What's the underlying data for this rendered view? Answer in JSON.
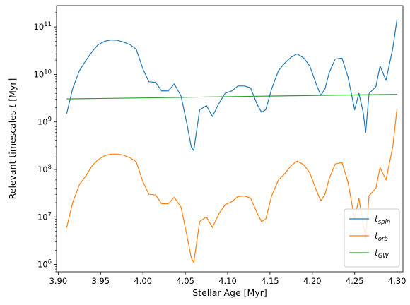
{
  "chart_data": {
    "type": "line",
    "xlabel": "Stellar Age [Myr]",
    "ylabel": "Relevant timescales t [Myr]",
    "ylabel_parts": {
      "text": "Relevant timescales ",
      "italic": "t",
      "unit": " [Myr]"
    },
    "xlim": [
      3.898,
      4.307
    ],
    "ylim": [
      700000,
      280000000000.0
    ],
    "yscale": "log",
    "grid": false,
    "legend_position": "bottom-right",
    "x_ticks": [
      {
        "value": 3.9,
        "label": "3.90"
      },
      {
        "value": 3.95,
        "label": "3.95"
      },
      {
        "value": 4.0,
        "label": "4.00"
      },
      {
        "value": 4.05,
        "label": "4.05"
      },
      {
        "value": 4.1,
        "label": "4.10"
      },
      {
        "value": 4.15,
        "label": "4.15"
      },
      {
        "value": 4.2,
        "label": "4.20"
      },
      {
        "value": 4.25,
        "label": "4.25"
      },
      {
        "value": 4.3,
        "label": "4.30"
      }
    ],
    "y_ticks": [
      {
        "value": 1000000.0,
        "base": "10",
        "exp": "6"
      },
      {
        "value": 10000000.0,
        "base": "10",
        "exp": "7"
      },
      {
        "value": 100000000.0,
        "base": "10",
        "exp": "8"
      },
      {
        "value": 1000000000.0,
        "base": "10",
        "exp": "9"
      },
      {
        "value": 10000000000.0,
        "base": "10",
        "exp": "10"
      },
      {
        "value": 100000000000.0,
        "base": "10",
        "exp": "11"
      }
    ],
    "series": [
      {
        "name": "t_spin",
        "label_main": "t",
        "label_sub": "spin",
        "color": "#1f77b4",
        "points": [
          [
            3.91,
            1500000000.0
          ],
          [
            3.917,
            5000000000.0
          ],
          [
            3.925,
            12000000000.0
          ],
          [
            3.933,
            20000000000.0
          ],
          [
            3.94,
            30000000000.0
          ],
          [
            3.947,
            42000000000.0
          ],
          [
            3.955,
            50000000000.0
          ],
          [
            3.962,
            53000000000.0
          ],
          [
            3.97,
            52000000000.0
          ],
          [
            3.977,
            48000000000.0
          ],
          [
            3.985,
            42000000000.0
          ],
          [
            3.992,
            34000000000.0
          ],
          [
            4.0,
            13000000000.0
          ],
          [
            4.007,
            7000000000.0
          ],
          [
            4.015,
            6800000000.0
          ],
          [
            4.022,
            4500000000.0
          ],
          [
            4.03,
            4500000000.0
          ],
          [
            4.037,
            6300000000.0
          ],
          [
            4.045,
            3500000000.0
          ],
          [
            4.052,
            900000000.0
          ],
          [
            4.057,
            300000000.0
          ],
          [
            4.06,
            250000000.0
          ],
          [
            4.067,
            1800000000.0
          ],
          [
            4.075,
            2200000000.0
          ],
          [
            4.082,
            1300000000.0
          ],
          [
            4.09,
            2500000000.0
          ],
          [
            4.097,
            4000000000.0
          ],
          [
            4.105,
            4500000000.0
          ],
          [
            4.112,
            5700000000.0
          ],
          [
            4.12,
            5700000000.0
          ],
          [
            4.127,
            5200000000.0
          ],
          [
            4.135,
            2300000000.0
          ],
          [
            4.14,
            1600000000.0
          ],
          [
            4.145,
            1800000000.0
          ],
          [
            4.152,
            5000000000.0
          ],
          [
            4.16,
            12000000000.0
          ],
          [
            4.167,
            17000000000.0
          ],
          [
            4.175,
            23000000000.0
          ],
          [
            4.182,
            27000000000.0
          ],
          [
            4.19,
            22000000000.0
          ],
          [
            4.197,
            15000000000.0
          ],
          [
            4.205,
            6000000000.0
          ],
          [
            4.21,
            3600000000.0
          ],
          [
            4.215,
            5000000000.0
          ],
          [
            4.22,
            11000000000.0
          ],
          [
            4.227,
            21000000000.0
          ],
          [
            4.235,
            22000000000.0
          ],
          [
            4.242,
            9000000000.0
          ],
          [
            4.25,
            1800000000.0
          ],
          [
            4.255,
            4000000000.0
          ],
          [
            4.26,
            1600000000.0
          ],
          [
            4.263,
            600000000.0
          ],
          [
            4.267,
            4000000000.0
          ],
          [
            4.275,
            5500000000.0
          ],
          [
            4.28,
            15000000000.0
          ],
          [
            4.287,
            7500000000.0
          ],
          [
            4.295,
            35000000000.0
          ],
          [
            4.3,
            145000000000.0
          ]
        ]
      },
      {
        "name": "t_orb",
        "label_main": "t",
        "label_sub": "orb",
        "color": "#ff7f0e",
        "points": [
          [
            3.91,
            6000000.0
          ],
          [
            3.917,
            20000000.0
          ],
          [
            3.925,
            48000000.0
          ],
          [
            3.933,
            75000000.0
          ],
          [
            3.94,
            120000000.0
          ],
          [
            3.947,
            160000000.0
          ],
          [
            3.955,
            195000000.0
          ],
          [
            3.962,
            210000000.0
          ],
          [
            3.97,
            210000000.0
          ],
          [
            3.977,
            200000000.0
          ],
          [
            3.985,
            175000000.0
          ],
          [
            3.992,
            145000000.0
          ],
          [
            4.0,
            55000000.0
          ],
          [
            4.007,
            30000000.0
          ],
          [
            4.015,
            29000000.0
          ],
          [
            4.022,
            19000000.0
          ],
          [
            4.03,
            19000000.0
          ],
          [
            4.037,
            26000000.0
          ],
          [
            4.045,
            16000000.0
          ],
          [
            4.052,
            4000000.0
          ],
          [
            4.057,
            1400000.0
          ],
          [
            4.06,
            1100000.0
          ],
          [
            4.067,
            8000000.0
          ],
          [
            4.075,
            10000000.0
          ],
          [
            4.082,
            6000000.0
          ],
          [
            4.09,
            12000000.0
          ],
          [
            4.097,
            18000000.0
          ],
          [
            4.105,
            21000000.0
          ],
          [
            4.112,
            27000000.0
          ],
          [
            4.12,
            27500000.0
          ],
          [
            4.127,
            25000000.0
          ],
          [
            4.135,
            12000000.0
          ],
          [
            4.14,
            8000000.0
          ],
          [
            4.145,
            9000000.0
          ],
          [
            4.152,
            28000000.0
          ],
          [
            4.16,
            60000000.0
          ],
          [
            4.167,
            80000000.0
          ],
          [
            4.175,
            120000000.0
          ],
          [
            4.182,
            150000000.0
          ],
          [
            4.19,
            125000000.0
          ],
          [
            4.197,
            85000000.0
          ],
          [
            4.205,
            35000000.0
          ],
          [
            4.21,
            22000000.0
          ],
          [
            4.215,
            30000000.0
          ],
          [
            4.22,
            65000000.0
          ],
          [
            4.227,
            130000000.0
          ],
          [
            4.235,
            140000000.0
          ],
          [
            4.242,
            55000000.0
          ],
          [
            4.25,
            9000000.0
          ],
          [
            4.255,
            25000000.0
          ],
          [
            4.26,
            7000000.0
          ],
          [
            4.263,
            3500000.0
          ],
          [
            4.267,
            28000000.0
          ],
          [
            4.275,
            40000000.0
          ],
          [
            4.28,
            110000000.0
          ],
          [
            4.287,
            60000000.0
          ],
          [
            4.295,
            300000000.0
          ],
          [
            4.3,
            1900000000.0
          ]
        ]
      },
      {
        "name": "t_GW",
        "label_main": "t",
        "label_sub": "GW",
        "color": "#2ca02c",
        "points": [
          [
            3.91,
            3050000000.0
          ],
          [
            4.0,
            3200000000.0
          ],
          [
            4.1,
            3400000000.0
          ],
          [
            4.2,
            3600000000.0
          ],
          [
            4.3,
            3800000000.0
          ]
        ]
      }
    ]
  }
}
